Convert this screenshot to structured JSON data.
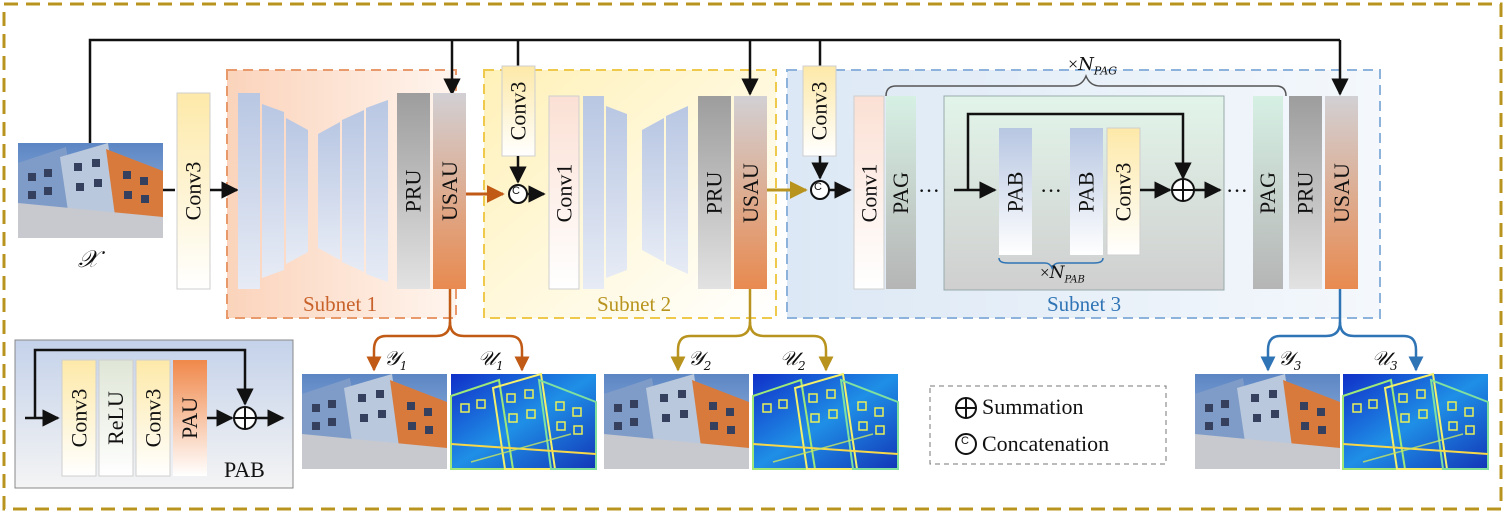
{
  "colors": {
    "frame": "#b8941f",
    "subnet1": "#e89a6c",
    "subnet2": "#efc94c",
    "subnet3": "#8db3dc",
    "arrow1": "#c05a14",
    "arrow2": "#b8941f",
    "arrow3": "#2f74b5"
  },
  "input_label": "𝒳",
  "blocks": {
    "conv3": "Conv3",
    "conv1": "Conv1",
    "pru": "PRU",
    "usau": "USAU",
    "pag": "PAG",
    "pab": "PAB",
    "relu": "ReLU",
    "pau": "PAU",
    "dots": "···"
  },
  "subnets": [
    "Subnet 1",
    "Subnet 2",
    "Subnet 3"
  ],
  "repeat": {
    "pag_times": "×",
    "pag_sub": "PAG",
    "pab_times": "×",
    "pab_sub": "PAB",
    "n": "N"
  },
  "outputs": [
    {
      "y": "𝒴",
      "u": "𝒰",
      "index": "1"
    },
    {
      "y": "𝒴",
      "u": "𝒰",
      "index": "2"
    },
    {
      "y": "𝒴",
      "u": "𝒰",
      "index": "3"
    }
  ],
  "pab_title": "PAB",
  "legend": {
    "summation": "Summation",
    "concatenation": "Concatenation",
    "concat_symbol": "C"
  }
}
